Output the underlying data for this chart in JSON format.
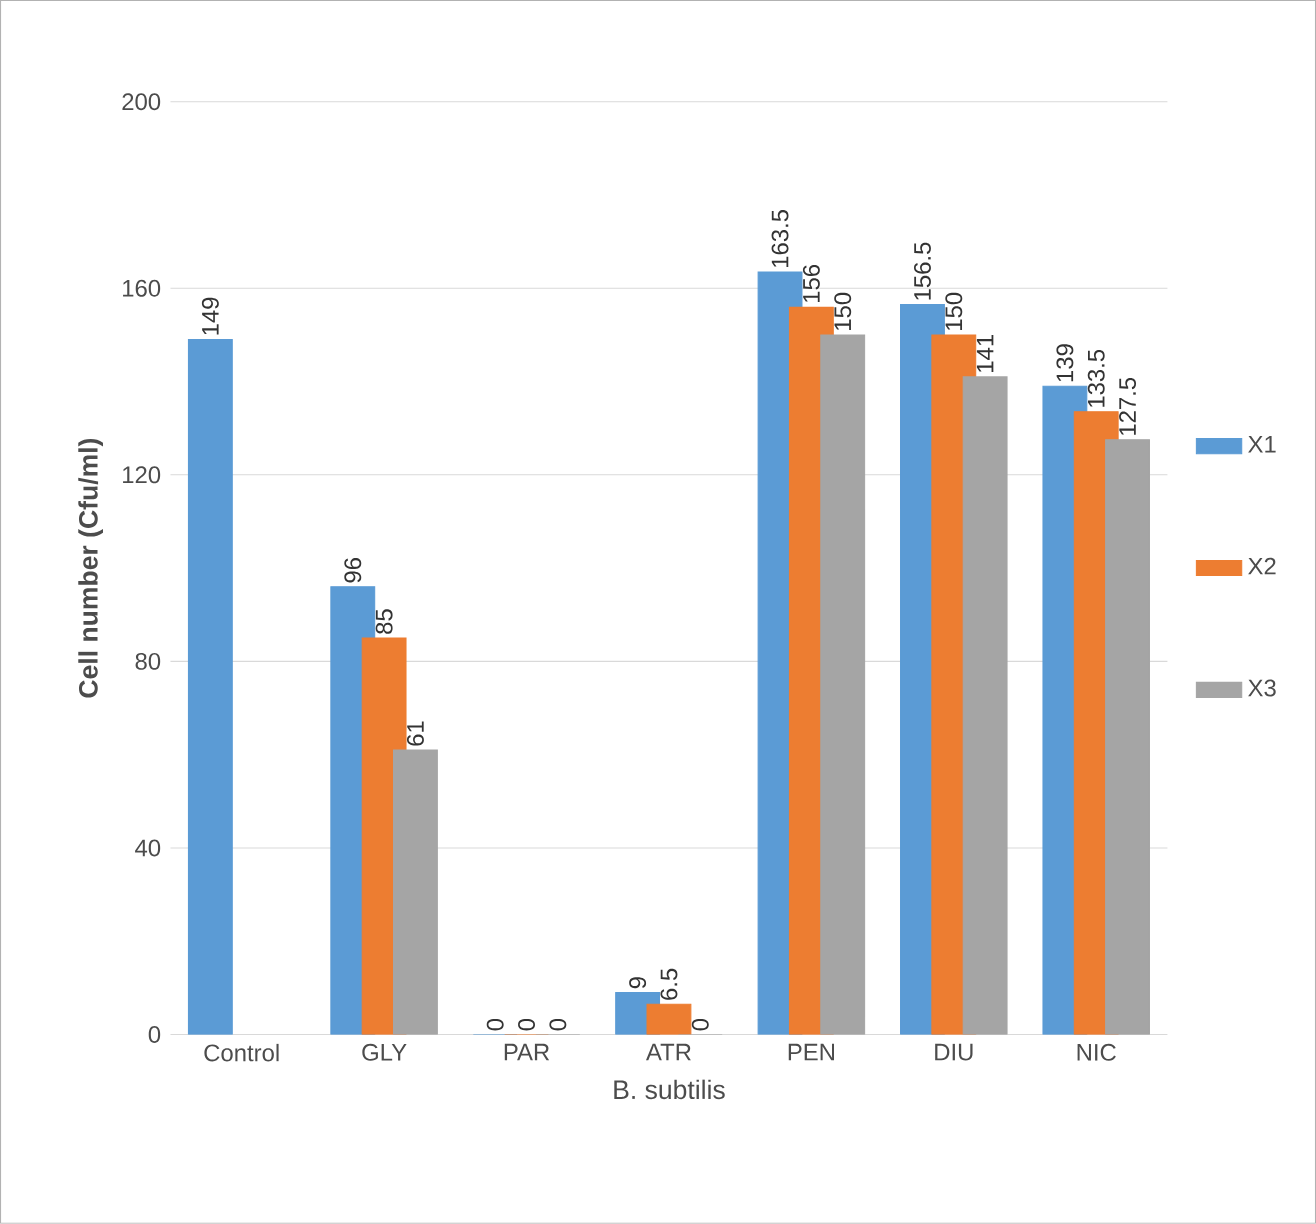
{
  "chart_data": {
    "type": "bar",
    "xlabel": "B. subtilis",
    "ylabel": "Cell number (Cfu/ml)",
    "categories": [
      "Control",
      "GLY",
      "PAR",
      "ATR",
      "PEN",
      "DIU",
      "NIC"
    ],
    "series": [
      {
        "name": "X1",
        "color": "#5b9bd5",
        "values": [
          149,
          96,
          0,
          9,
          163.5,
          156.5,
          139
        ]
      },
      {
        "name": "X2",
        "color": "#ed7d31",
        "values": [
          null,
          85,
          0,
          6.5,
          156,
          150,
          133.5
        ]
      },
      {
        "name": "X3",
        "color": "#a5a5a5",
        "values": [
          null,
          61,
          0,
          0,
          150,
          141,
          127.5
        ]
      }
    ],
    "ylim": [
      0,
      200
    ],
    "yticks": [
      0,
      40,
      80,
      120,
      160,
      200
    ],
    "grid": "y",
    "legend": "right",
    "data_labels": true
  }
}
